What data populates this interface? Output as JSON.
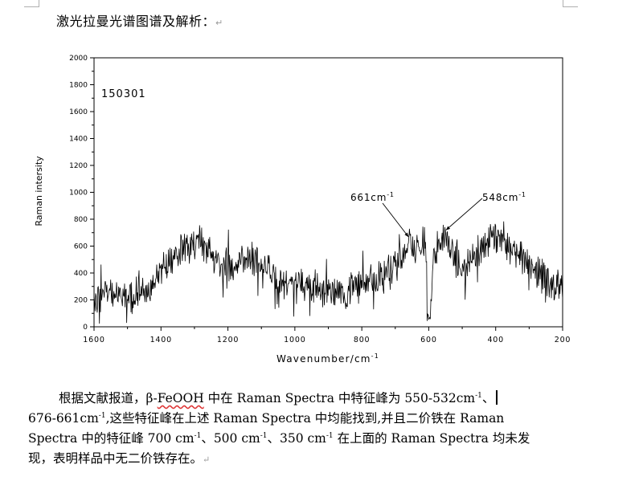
{
  "heading": {
    "text": "激光拉曼光谱图谱及解析：",
    "mark": "↵"
  },
  "chart_data": {
    "type": "line",
    "sample_label": "150301",
    "xlabel_main": "Wavenumber/cm",
    "xlabel_sup": "-1",
    "ylabel": "Raman intersity",
    "xlim": [
      1600,
      200
    ],
    "ylim": [
      0,
      2000
    ],
    "x_ticks": [
      "1600",
      "1400",
      "1200",
      "1000",
      "800",
      "600",
      "400",
      "200"
    ],
    "y_ticks": [
      "0",
      "200",
      "400",
      "600",
      "800",
      "1000",
      "1200",
      "1400",
      "1600",
      "1800",
      "2000"
    ],
    "annotations": [
      {
        "main": "661cm",
        "sup": "-1",
        "x": 661,
        "y": 670
      },
      {
        "main": "548cm",
        "sup": "-1",
        "x": 548,
        "y": 720
      }
    ],
    "envelope": [
      [
        1600,
        210
      ],
      [
        1560,
        250
      ],
      [
        1520,
        220
      ],
      [
        1480,
        240
      ],
      [
        1440,
        280
      ],
      [
        1400,
        400
      ],
      [
        1370,
        520
      ],
      [
        1340,
        580
      ],
      [
        1310,
        620
      ],
      [
        1290,
        640
      ],
      [
        1270,
        600
      ],
      [
        1240,
        520
      ],
      [
        1210,
        470
      ],
      [
        1180,
        480
      ],
      [
        1150,
        500
      ],
      [
        1120,
        490
      ],
      [
        1090,
        460
      ],
      [
        1060,
        400
      ],
      [
        1050,
        230
      ],
      [
        1040,
        330
      ],
      [
        1000,
        330
      ],
      [
        960,
        310
      ],
      [
        920,
        280
      ],
      [
        900,
        300
      ],
      [
        880,
        230
      ],
      [
        860,
        240
      ],
      [
        820,
        280
      ],
      [
        800,
        300
      ],
      [
        770,
        330
      ],
      [
        740,
        360
      ],
      [
        710,
        420
      ],
      [
        690,
        480
      ],
      [
        670,
        580
      ],
      [
        661,
        640
      ],
      [
        650,
        620
      ],
      [
        640,
        560
      ],
      [
        625,
        640
      ],
      [
        610,
        600
      ],
      [
        600,
        180
      ],
      [
        595,
        120
      ],
      [
        585,
        520
      ],
      [
        570,
        640
      ],
      [
        560,
        660
      ],
      [
        548,
        700
      ],
      [
        540,
        600
      ],
      [
        520,
        500
      ],
      [
        490,
        470
      ],
      [
        470,
        500
      ],
      [
        450,
        560
      ],
      [
        420,
        660
      ],
      [
        400,
        690
      ],
      [
        380,
        660
      ],
      [
        360,
        590
      ],
      [
        340,
        540
      ],
      [
        320,
        500
      ],
      [
        300,
        450
      ],
      [
        280,
        400
      ],
      [
        260,
        370
      ],
      [
        240,
        330
      ],
      [
        220,
        310
      ],
      [
        200,
        290
      ]
    ]
  },
  "paragraph": {
    "l1_a": "根据文献报道，β-",
    "l1_b": "FeOOH",
    "l1_c": " 中在 Raman Spectra 中特征峰为 550-532cm",
    "l1_sup": "-1",
    "l1_d": "、",
    "l2_a": "676-661cm",
    "l2_sup": "-1",
    "l2_b": ",这些特征峰在上述 Raman Spectra 中均能找到,并且二价铁在 Raman",
    "l3_a": "Spectra 中的特征峰 700 cm",
    "l3_sup1": "-1",
    "l3_b": "、500 cm",
    "l3_sup2": "-1",
    "l3_c": "、350 cm",
    "l3_sup3": "-1",
    "l3_d": " 在上面的 Raman Spectra 均未发",
    "l4": "现，表明样品中无二价铁存在。",
    "mark": "↵"
  }
}
